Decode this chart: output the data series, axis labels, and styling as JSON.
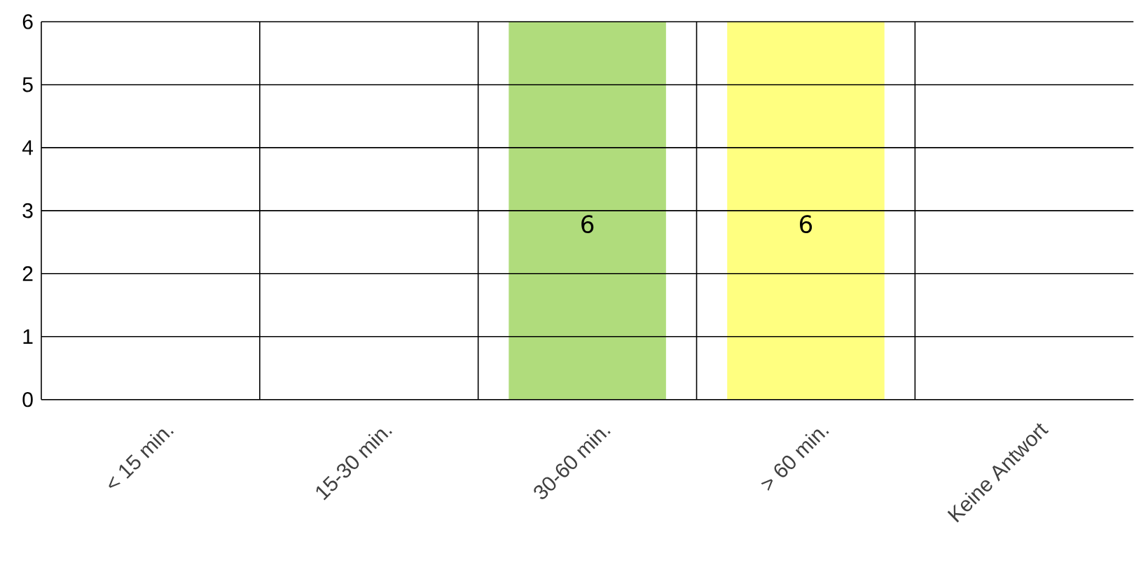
{
  "chart_data": {
    "type": "bar",
    "categories": [
      "< 15 min.",
      "15-30 min.",
      "30-60 min.",
      "> 60 min.",
      "Keine Antwort"
    ],
    "values": [
      0,
      0,
      6,
      6,
      0
    ],
    "colors": [
      "#b0dc7c",
      "#b0dc7c",
      "#b0dc7c",
      "#ffff80",
      "#b0dc7c"
    ],
    "value_labels": [
      null,
      null,
      "6",
      "6",
      null
    ],
    "ylim": [
      0,
      6
    ],
    "yticks": [
      0,
      1,
      2,
      3,
      4,
      5,
      6
    ],
    "grid": true
  }
}
